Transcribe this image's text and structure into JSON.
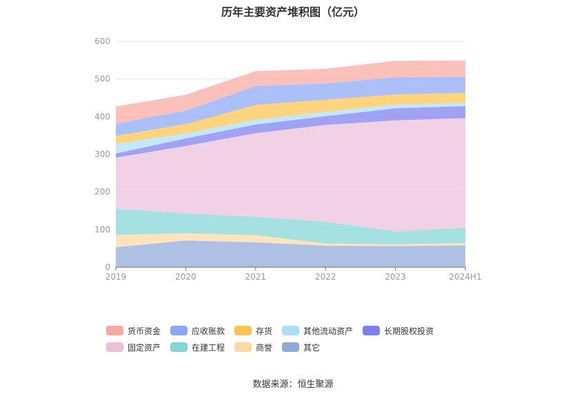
{
  "title": "历年主要资产堆积图（亿元）",
  "source": "数据来源：恒生聚源",
  "chart_data": {
    "type": "area",
    "stacked": true,
    "categories": [
      "2019",
      "2020",
      "2021",
      "2022",
      "2023",
      "2024H1"
    ],
    "ylim": [
      0,
      600
    ],
    "yticks": [
      0,
      100,
      200,
      300,
      400,
      500,
      600
    ],
    "grid": true,
    "legend_position": "bottom",
    "series": [
      {
        "name": "其它",
        "color": "#8fa9d9",
        "values": [
          53,
          71,
          66,
          57,
          56,
          58
        ]
      },
      {
        "name": "商誉",
        "color": "#fcd9a2",
        "values": [
          33,
          19,
          19,
          6,
          5,
          6
        ]
      },
      {
        "name": "在建工程",
        "color": "#84d6d6",
        "values": [
          69,
          53,
          49,
          58,
          34,
          40
        ]
      },
      {
        "name": "固定资产",
        "color": "#edbfdc",
        "values": [
          136,
          179,
          222,
          257,
          295,
          292
        ]
      },
      {
        "name": "长期股权投资",
        "color": "#7b80ee",
        "values": [
          11,
          20,
          23,
          23,
          32,
          32
        ]
      },
      {
        "name": "其他流动资产",
        "color": "#aadffa",
        "values": [
          25,
          13,
          13,
          11,
          10,
          8
        ]
      },
      {
        "name": "存货",
        "color": "#fdc44e",
        "values": [
          22,
          25,
          39,
          33,
          27,
          27
        ]
      },
      {
        "name": "应收账款",
        "color": "#8aa8f7",
        "values": [
          32,
          36,
          50,
          43,
          45,
          42
        ]
      },
      {
        "name": "货币资金",
        "color": "#f8a8a0",
        "values": [
          46,
          42,
          40,
          39,
          44,
          44
        ]
      }
    ]
  },
  "legend": [
    {
      "label": "货币资金",
      "color": "#f8a8a0"
    },
    {
      "label": "应收账款",
      "color": "#8aa8f7"
    },
    {
      "label": "存货",
      "color": "#fdc44e"
    },
    {
      "label": "其他流动资产",
      "color": "#aadffa"
    },
    {
      "label": "长期股权投资",
      "color": "#7b80ee"
    },
    {
      "label": "固定资产",
      "color": "#edbfdc"
    },
    {
      "label": "在建工程",
      "color": "#84d6d6"
    },
    {
      "label": "商誉",
      "color": "#fcd9a2"
    },
    {
      "label": "其它",
      "color": "#8fa9d9"
    }
  ]
}
